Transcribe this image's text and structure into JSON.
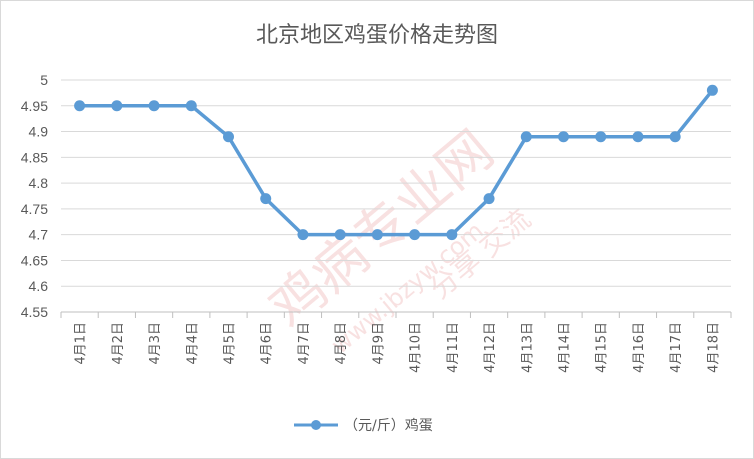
{
  "chart_data": {
    "type": "line",
    "title": "北京地区鸡蛋价格走势图",
    "categories": [
      "4月1日",
      "4月2日",
      "4月3日",
      "4月4日",
      "4月5日",
      "4月6日",
      "4月7日",
      "4月8日",
      "4月9日",
      "4月10日",
      "4月11日",
      "4月12日",
      "4月13日",
      "4月14日",
      "4月15日",
      "4月16日",
      "4月17日",
      "4月18日"
    ],
    "series": [
      {
        "name": "（元/斤）鸡蛋",
        "values": [
          4.95,
          4.95,
          4.95,
          4.95,
          4.89,
          4.77,
          4.7,
          4.7,
          4.7,
          4.7,
          4.7,
          4.77,
          4.89,
          4.89,
          4.89,
          4.89,
          4.89,
          4.98
        ]
      }
    ],
    "ylim": [
      4.55,
      5.0
    ],
    "yticks": [
      "4.55",
      "4.6",
      "4.65",
      "4.7",
      "4.75",
      "4.8",
      "4.85",
      "4.9",
      "4.95",
      "5"
    ],
    "xlabel": "",
    "ylabel": "",
    "grid": true,
    "legend": "bottom",
    "line_color": "#5b9bd5",
    "grid_color": "#d9d9d9"
  },
  "watermark": {
    "main": "鸡病专业网",
    "url": "www.jbzyw.com",
    "sub": "分享 交流"
  }
}
